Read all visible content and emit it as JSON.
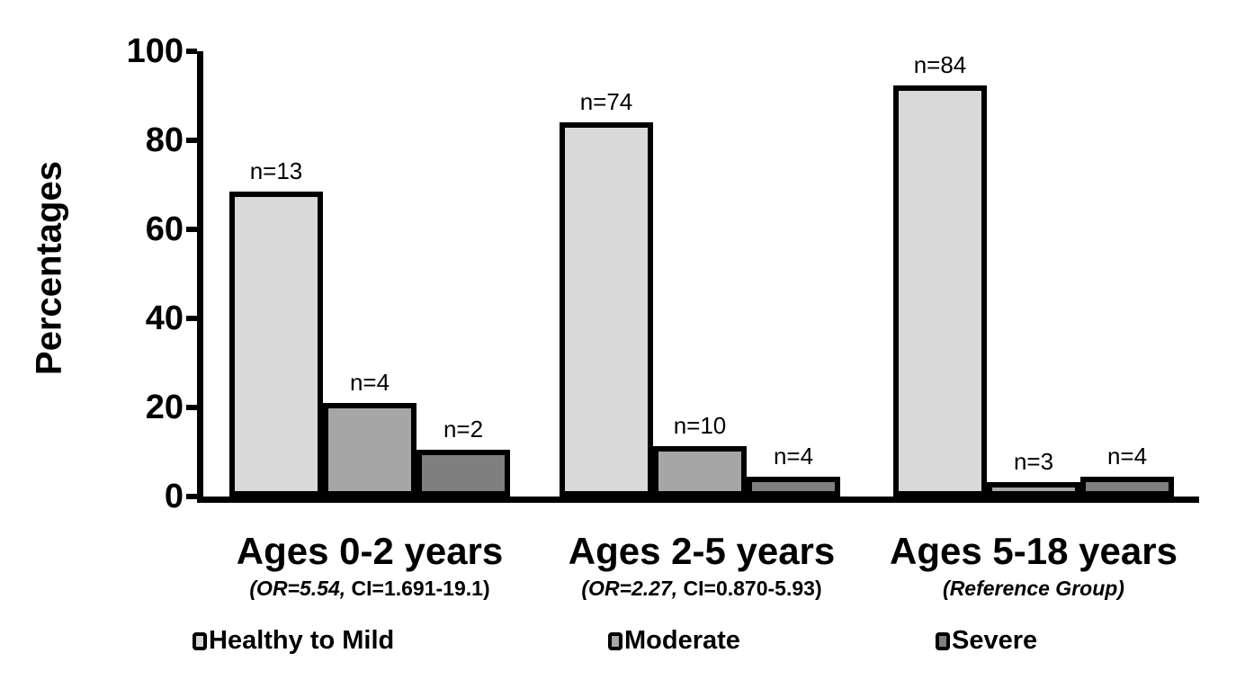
{
  "chart_data": {
    "type": "bar",
    "title": "",
    "xlabel": "",
    "ylabel": "Percentages",
    "ylim": [
      0,
      100
    ],
    "yticks": [
      0,
      20,
      40,
      60,
      80,
      100
    ],
    "grid": false,
    "legend_position": "bottom",
    "categories": [
      "Ages 0-2 years",
      "Ages 2-5 years",
      "Ages 5-18 years"
    ],
    "category_subtitles": [
      {
        "italic": "(OR=5.54,",
        "rest": " CI=1.691-19.1)"
      },
      {
        "italic": "(OR=2.27,",
        "rest": " CI=0.870-5.93)"
      },
      {
        "italic": "(Reference Group)",
        "rest": ""
      }
    ],
    "series": [
      {
        "name": "Healthy to Mild",
        "color": "#d9d9d9",
        "values": [
          68.4,
          84.1,
          92.3
        ],
        "counts": [
          13,
          74,
          84
        ],
        "bar_labels": [
          "n=13",
          "n=74",
          "n=84"
        ]
      },
      {
        "name": "Moderate",
        "color": "#a6a6a6",
        "values": [
          21.1,
          11.4,
          3.3
        ],
        "counts": [
          4,
          10,
          3
        ],
        "bar_labels": [
          "n=4",
          "n=10",
          "n=3"
        ]
      },
      {
        "name": "Severe",
        "color": "#7f7f7f",
        "values": [
          10.5,
          4.5,
          4.4
        ],
        "counts": [
          2,
          4,
          4
        ],
        "bar_labels": [
          "n=2",
          "n=4",
          "n=4"
        ]
      }
    ]
  }
}
